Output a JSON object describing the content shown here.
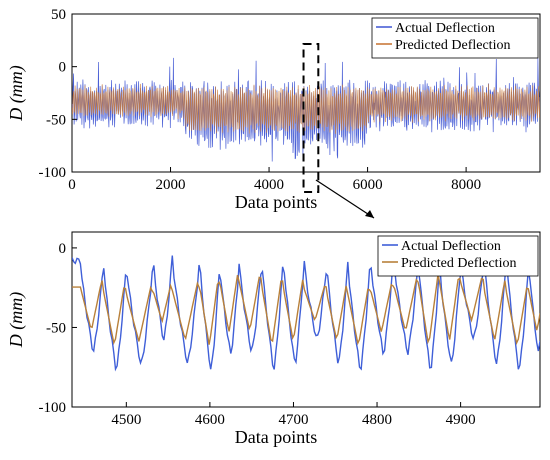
{
  "chart_data": [
    {
      "type": "line",
      "xlabel": "Data points",
      "ylabel": "D (mm)",
      "xlim": [
        0,
        9500
      ],
      "ylim": [
        -100,
        50
      ],
      "xticks": [
        0,
        2000,
        4000,
        6000,
        8000
      ],
      "yticks": [
        -100,
        -50,
        0,
        50
      ],
      "x_range": [
        0,
        9500
      ],
      "series": [
        {
          "name": "Actual Deflection",
          "color": "#4a5fd6",
          "range": [
            -90,
            40
          ]
        },
        {
          "name": "Predicted Deflection",
          "color": "#c97a3a",
          "range": [
            -80,
            5
          ]
        }
      ],
      "zoom_box": {
        "x_from": 4700,
        "x_to": 5000
      },
      "legend": "top-right",
      "grid": false
    },
    {
      "type": "line",
      "xlabel": "Data points",
      "ylabel": "D (mm)",
      "xlim": [
        4435,
        4995
      ],
      "ylim": [
        -100,
        10
      ],
      "xticks": [
        4500,
        4600,
        4700,
        4800,
        4900
      ],
      "yticks": [
        -100,
        -50,
        0
      ],
      "x_range": [
        4435,
        4995
      ],
      "peak_x": [
        4445,
        4473,
        4500,
        4532,
        4555,
        4588,
        4612,
        4635,
        4662,
        4688,
        4713,
        4740,
        4765,
        4792,
        4820,
        4850,
        4875,
        4900,
        4928,
        4955,
        4982
      ],
      "series": [
        {
          "name": "Actual Deflection",
          "color": "#3f5fd8",
          "range": [
            -82,
            -8
          ]
        },
        {
          "name": "Predicted Deflection",
          "color": "#b8803a",
          "range": [
            -65,
            -15
          ]
        }
      ],
      "legend": "top-right",
      "grid": false
    }
  ]
}
